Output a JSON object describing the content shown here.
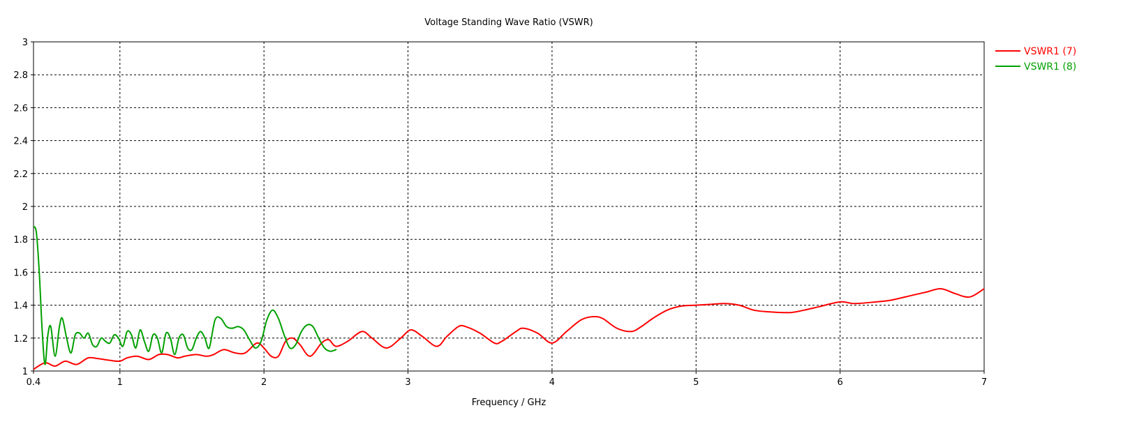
{
  "chart_data": {
    "type": "line",
    "title": "Voltage Standing Wave Ratio (VSWR)",
    "xlabel": "Frequency / GHz",
    "ylabel": "",
    "xlim": [
      0.4,
      7
    ],
    "ylim": [
      1,
      3
    ],
    "grid": true,
    "legend_position": "top-right",
    "x_ticks": [
      "0.4",
      "1",
      "2",
      "3",
      "4",
      "5",
      "6",
      "7"
    ],
    "x_tick_values": [
      0.4,
      1,
      2,
      3,
      4,
      5,
      6,
      7
    ],
    "y_ticks": [
      "1",
      "1.2",
      "1.4",
      "1.6",
      "1.8",
      "2",
      "2.2",
      "2.4",
      "2.6",
      "2.8",
      "3"
    ],
    "y_tick_values": [
      1,
      1.2,
      1.4,
      1.6,
      1.8,
      2,
      2.2,
      2.4,
      2.6,
      2.8,
      3
    ],
    "series": [
      {
        "name": "VSWR1 (7)",
        "color": "#ff0000",
        "x": [
          0.4,
          0.48,
          0.55,
          0.62,
          0.7,
          0.78,
          0.85,
          0.93,
          1.0,
          1.05,
          1.12,
          1.2,
          1.27,
          1.33,
          1.4,
          1.45,
          1.53,
          1.6,
          1.65,
          1.72,
          1.8,
          1.87,
          1.95,
          2.0,
          2.05,
          2.1,
          2.15,
          2.2,
          2.25,
          2.32,
          2.4,
          2.45,
          2.5,
          2.58,
          2.68,
          2.75,
          2.85,
          2.95,
          3.02,
          3.1,
          3.2,
          3.27,
          3.35,
          3.4,
          3.5,
          3.6,
          3.65,
          3.75,
          3.8,
          3.9,
          4.0,
          4.1,
          4.2,
          4.28,
          4.35,
          4.45,
          4.55,
          4.62,
          4.7,
          4.8,
          4.9,
          5.0,
          5.1,
          5.2,
          5.3,
          5.4,
          5.5,
          5.65,
          5.75,
          5.85,
          6.0,
          6.1,
          6.25,
          6.35,
          6.5,
          6.6,
          6.7,
          6.8,
          6.9,
          7.0
        ],
        "y": [
          1.01,
          1.05,
          1.03,
          1.06,
          1.04,
          1.08,
          1.075,
          1.065,
          1.06,
          1.08,
          1.09,
          1.07,
          1.1,
          1.1,
          1.08,
          1.09,
          1.1,
          1.09,
          1.1,
          1.13,
          1.11,
          1.11,
          1.17,
          1.14,
          1.09,
          1.09,
          1.18,
          1.2,
          1.16,
          1.09,
          1.17,
          1.19,
          1.15,
          1.18,
          1.24,
          1.2,
          1.14,
          1.2,
          1.25,
          1.21,
          1.15,
          1.21,
          1.27,
          1.27,
          1.23,
          1.17,
          1.18,
          1.24,
          1.26,
          1.23,
          1.17,
          1.24,
          1.31,
          1.33,
          1.32,
          1.26,
          1.24,
          1.27,
          1.32,
          1.37,
          1.395,
          1.4,
          1.405,
          1.41,
          1.4,
          1.37,
          1.36,
          1.355,
          1.37,
          1.39,
          1.42,
          1.41,
          1.42,
          1.43,
          1.46,
          1.48,
          1.5,
          1.47,
          1.45,
          1.5
        ]
      },
      {
        "name": "VSWR1 (8)",
        "color": "#00a000",
        "x": [
          0.4,
          0.42,
          0.44,
          0.46,
          0.48,
          0.5,
          0.52,
          0.55,
          0.58,
          0.6,
          0.63,
          0.66,
          0.69,
          0.72,
          0.75,
          0.78,
          0.81,
          0.84,
          0.87,
          0.9,
          0.93,
          0.96,
          0.99,
          1.02,
          1.05,
          1.08,
          1.11,
          1.14,
          1.17,
          1.2,
          1.23,
          1.26,
          1.29,
          1.32,
          1.35,
          1.38,
          1.41,
          1.44,
          1.47,
          1.5,
          1.53,
          1.56,
          1.59,
          1.62,
          1.66,
          1.7,
          1.74,
          1.78,
          1.82,
          1.86,
          1.9,
          1.94,
          1.98,
          2.02,
          2.06,
          2.1,
          2.14,
          2.18,
          2.22,
          2.26,
          2.3,
          2.34,
          2.38,
          2.42,
          2.46,
          2.5
        ],
        "y": [
          1.88,
          1.84,
          1.6,
          1.25,
          1.04,
          1.22,
          1.27,
          1.09,
          1.27,
          1.32,
          1.2,
          1.11,
          1.22,
          1.23,
          1.2,
          1.23,
          1.16,
          1.15,
          1.2,
          1.18,
          1.17,
          1.22,
          1.2,
          1.15,
          1.24,
          1.22,
          1.14,
          1.25,
          1.18,
          1.12,
          1.22,
          1.2,
          1.11,
          1.23,
          1.2,
          1.1,
          1.2,
          1.22,
          1.14,
          1.13,
          1.2,
          1.24,
          1.2,
          1.14,
          1.31,
          1.32,
          1.27,
          1.26,
          1.27,
          1.25,
          1.19,
          1.14,
          1.18,
          1.31,
          1.37,
          1.32,
          1.22,
          1.14,
          1.16,
          1.24,
          1.28,
          1.27,
          1.2,
          1.14,
          1.12,
          1.13
        ]
      }
    ]
  }
}
